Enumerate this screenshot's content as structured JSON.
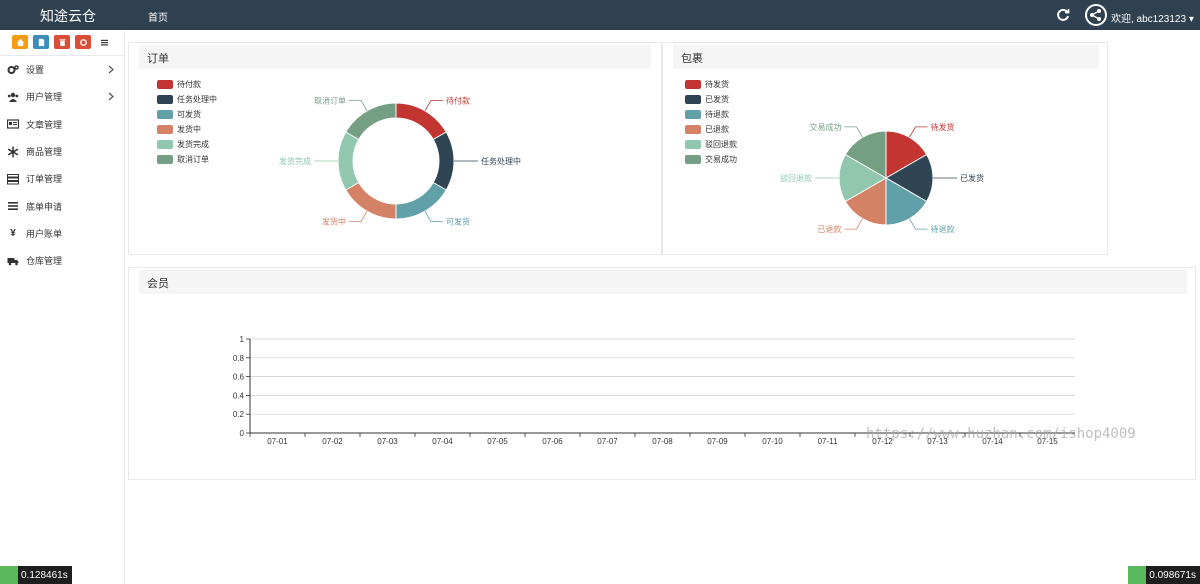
{
  "app": {
    "brand": "知途云仓",
    "nav_home": "首页",
    "welcome": "欢迎, abc123123 ▾"
  },
  "sidebar": {
    "quick_buttons": [
      {
        "icon": "home-icon",
        "color": "#f39c12"
      },
      {
        "icon": "file-icon",
        "color": "#3c8dbc"
      },
      {
        "icon": "trash-icon",
        "color": "#dd4b39"
      },
      {
        "icon": "recycle-icon",
        "color": "#dd4b39"
      },
      {
        "icon": "list-icon",
        "color": "#ffffff"
      }
    ],
    "items": [
      {
        "label": "设置",
        "icon": "gears-icon",
        "has_children": true
      },
      {
        "label": "用户管理",
        "icon": "users-icon",
        "has_children": true
      },
      {
        "label": "文章管理",
        "icon": "newspaper-icon",
        "has_children": false
      },
      {
        "label": "商品管理",
        "icon": "snowflake-icon",
        "has_children": false
      },
      {
        "label": "订单管理",
        "icon": "server-icon",
        "has_children": false
      },
      {
        "label": "底单申请",
        "icon": "bars-icon",
        "has_children": false
      },
      {
        "label": "用户账单",
        "icon": "yen-icon",
        "has_children": false
      },
      {
        "label": "仓库管理",
        "icon": "truck-icon",
        "has_children": false
      }
    ]
  },
  "panels": {
    "orders": {
      "title": "订单"
    },
    "packages": {
      "title": "包裹"
    },
    "members": {
      "title": "会员"
    }
  },
  "chart_data": [
    {
      "type": "pie",
      "variant": "donut",
      "title": "订单",
      "categories": [
        "待付款",
        "任务处理中",
        "可发货",
        "发货中",
        "发货完成",
        "取消订单"
      ],
      "values": [
        1,
        1,
        1,
        1,
        1,
        1
      ],
      "colors": [
        "#c23531",
        "#2f4554",
        "#61a0a8",
        "#d48265",
        "#91c7ae",
        "#749f83"
      ],
      "legend": "top-left"
    },
    {
      "type": "pie",
      "title": "包裹",
      "categories": [
        "待发货",
        "已发货",
        "待退款",
        "已退款",
        "驳回退款",
        "交易成功"
      ],
      "values": [
        1,
        1,
        1,
        1,
        1,
        1
      ],
      "colors": [
        "#c23531",
        "#2f4554",
        "#61a0a8",
        "#d48265",
        "#91c7ae",
        "#749f83"
      ],
      "legend": "top-left"
    },
    {
      "type": "line",
      "title": "会员",
      "x": [
        "07-01",
        "07-02",
        "07-03",
        "07-04",
        "07-05",
        "07-06",
        "07-07",
        "07-08",
        "07-09",
        "07-10",
        "07-11",
        "07-12",
        "07-13",
        "07-14",
        "07-15"
      ],
      "ylim": [
        0,
        1
      ],
      "yticks": [
        "0",
        "0.2",
        "0.4",
        "0.6",
        "0.8",
        "1"
      ],
      "series": [],
      "grid": true
    }
  ],
  "watermark": "https://www.huzhan.com/ishop4009",
  "timers": {
    "left": "0.128461s",
    "right": "0.098671s"
  }
}
